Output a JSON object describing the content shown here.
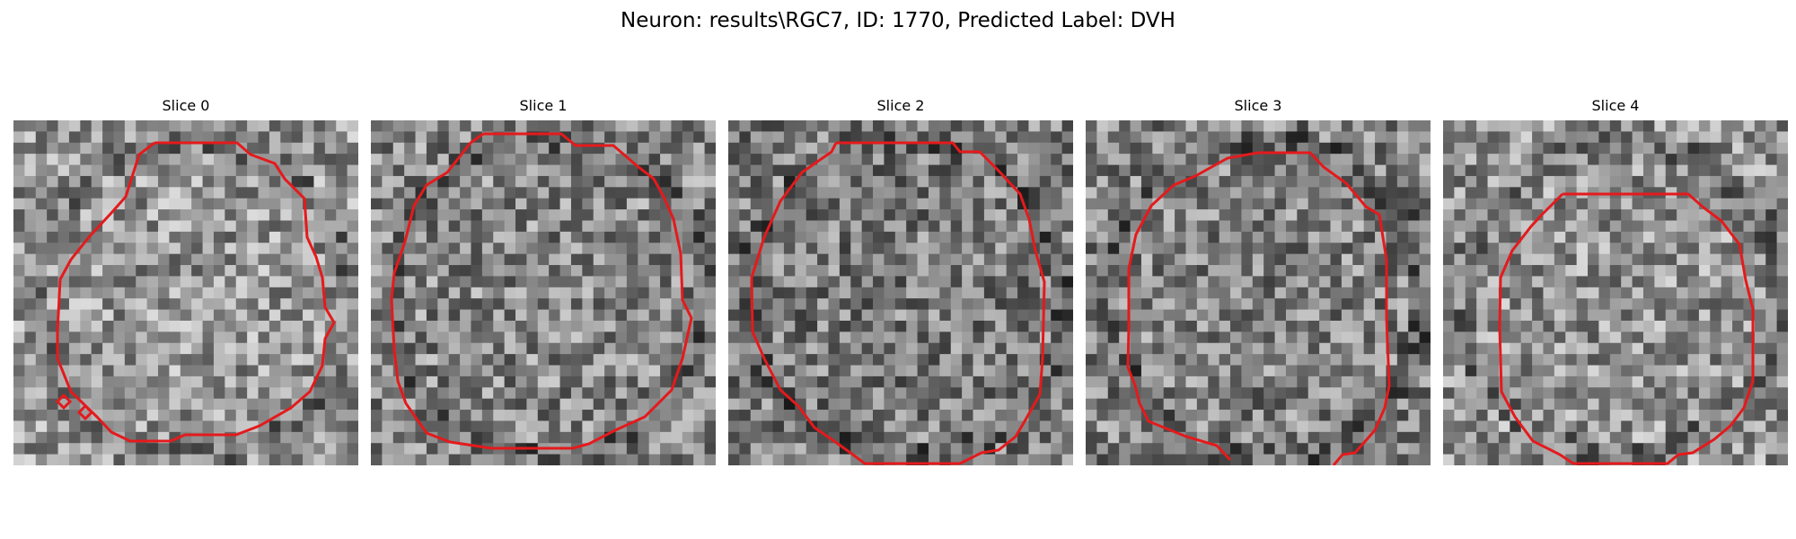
{
  "title": "Neuron: results\\RGC7, ID: 1770, Predicted Label: DVH",
  "panels": [
    {
      "title": "Slice 0",
      "seed": 11,
      "bias": 0.04
    },
    {
      "title": "Slice 1",
      "seed": 23,
      "bias": -0.02
    },
    {
      "title": "Slice 2",
      "seed": 37,
      "bias": -0.06
    },
    {
      "title": "Slice 3",
      "seed": 41,
      "bias": -0.04
    },
    {
      "title": "Slice 4",
      "seed": 59,
      "bias": 0.03
    }
  ],
  "colors": {
    "contour": "#e41a1c",
    "background": "#ffffff"
  },
  "image_kind": "grayscale microscopy slices with red ROI contours"
}
